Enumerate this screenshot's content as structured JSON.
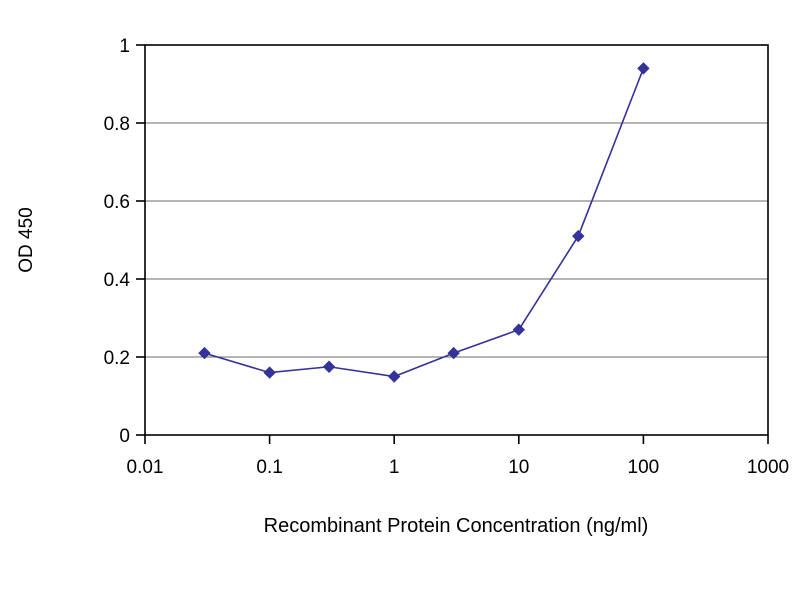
{
  "chart_data": {
    "type": "line",
    "title": "",
    "xlabel": "Recombinant Protein Concentration (ng/ml)",
    "ylabel": "OD 450",
    "x_scale": "log",
    "xlim": [
      0.01,
      1000
    ],
    "ylim": [
      0,
      1
    ],
    "x_ticks": [
      0.01,
      0.1,
      1,
      10,
      100,
      1000
    ],
    "x_tick_labels": [
      "0.01",
      "0.1",
      "1",
      "10",
      "100",
      "1000"
    ],
    "y_ticks": [
      0,
      0.2,
      0.4,
      0.6,
      0.8,
      1
    ],
    "y_tick_labels": [
      "0",
      "0.2",
      "0.4",
      "0.6",
      "0.8",
      "1"
    ],
    "grid": "horizontal",
    "legend": "none",
    "background": "#ffffff",
    "axis_color": "#000000",
    "grid_color": "#6b6b6b",
    "series": [
      {
        "name": "OD450",
        "color": "#333399",
        "marker": "diamond",
        "x": [
          0.03,
          0.1,
          0.3,
          1,
          3,
          10,
          30,
          100
        ],
        "y": [
          0.21,
          0.16,
          0.175,
          0.15,
          0.21,
          0.27,
          0.51,
          0.94
        ]
      }
    ]
  }
}
